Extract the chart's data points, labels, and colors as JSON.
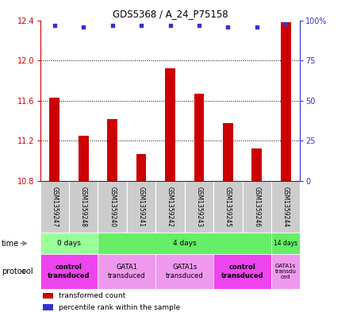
{
  "title": "GDS5368 / A_24_P75158",
  "samples": [
    "GSM1359247",
    "GSM1359248",
    "GSM1359240",
    "GSM1359241",
    "GSM1359242",
    "GSM1359243",
    "GSM1359245",
    "GSM1359246",
    "GSM1359244"
  ],
  "transformed_counts": [
    11.63,
    11.25,
    11.42,
    11.07,
    11.92,
    11.67,
    11.38,
    11.12,
    12.38
  ],
  "percentile_ranks": [
    97,
    96,
    97,
    97,
    97,
    97,
    96,
    96,
    98
  ],
  "ylim": [
    10.8,
    12.4
  ],
  "yticks": [
    10.8,
    11.2,
    11.6,
    12.0,
    12.4
  ],
  "right_yticks": [
    0,
    25,
    50,
    75,
    100
  ],
  "right_ylim": [
    0,
    100
  ],
  "bar_color": "#cc0000",
  "dot_color": "#3333cc",
  "bg_color": "#ffffff",
  "grid_color": "#000000",
  "sample_box_color": "#cccccc",
  "time_boundaries": [
    {
      "xstart": -0.5,
      "xend": 1.5,
      "label": "0 days",
      "color": "#99ff99"
    },
    {
      "xstart": 1.5,
      "xend": 7.5,
      "label": "4 days",
      "color": "#66ee66"
    },
    {
      "xstart": 7.5,
      "xend": 8.5,
      "label": "14 days",
      "color": "#66ee66"
    }
  ],
  "proto_boundaries": [
    {
      "xstart": -0.5,
      "xend": 1.5,
      "label": "control\ntransduced",
      "color": "#ee44ee",
      "bold": true
    },
    {
      "xstart": 1.5,
      "xend": 3.5,
      "label": "GATA1\ntransduced",
      "color": "#ee99ee",
      "bold": false
    },
    {
      "xstart": 3.5,
      "xend": 5.5,
      "label": "GATA1s\ntransduced",
      "color": "#ee99ee",
      "bold": false
    },
    {
      "xstart": 5.5,
      "xend": 7.5,
      "label": "control\ntransduced",
      "color": "#ee44ee",
      "bold": true
    },
    {
      "xstart": 7.5,
      "xend": 8.5,
      "label": "GATA1s\ntransdu\nced",
      "color": "#ee99ee",
      "bold": false
    }
  ]
}
